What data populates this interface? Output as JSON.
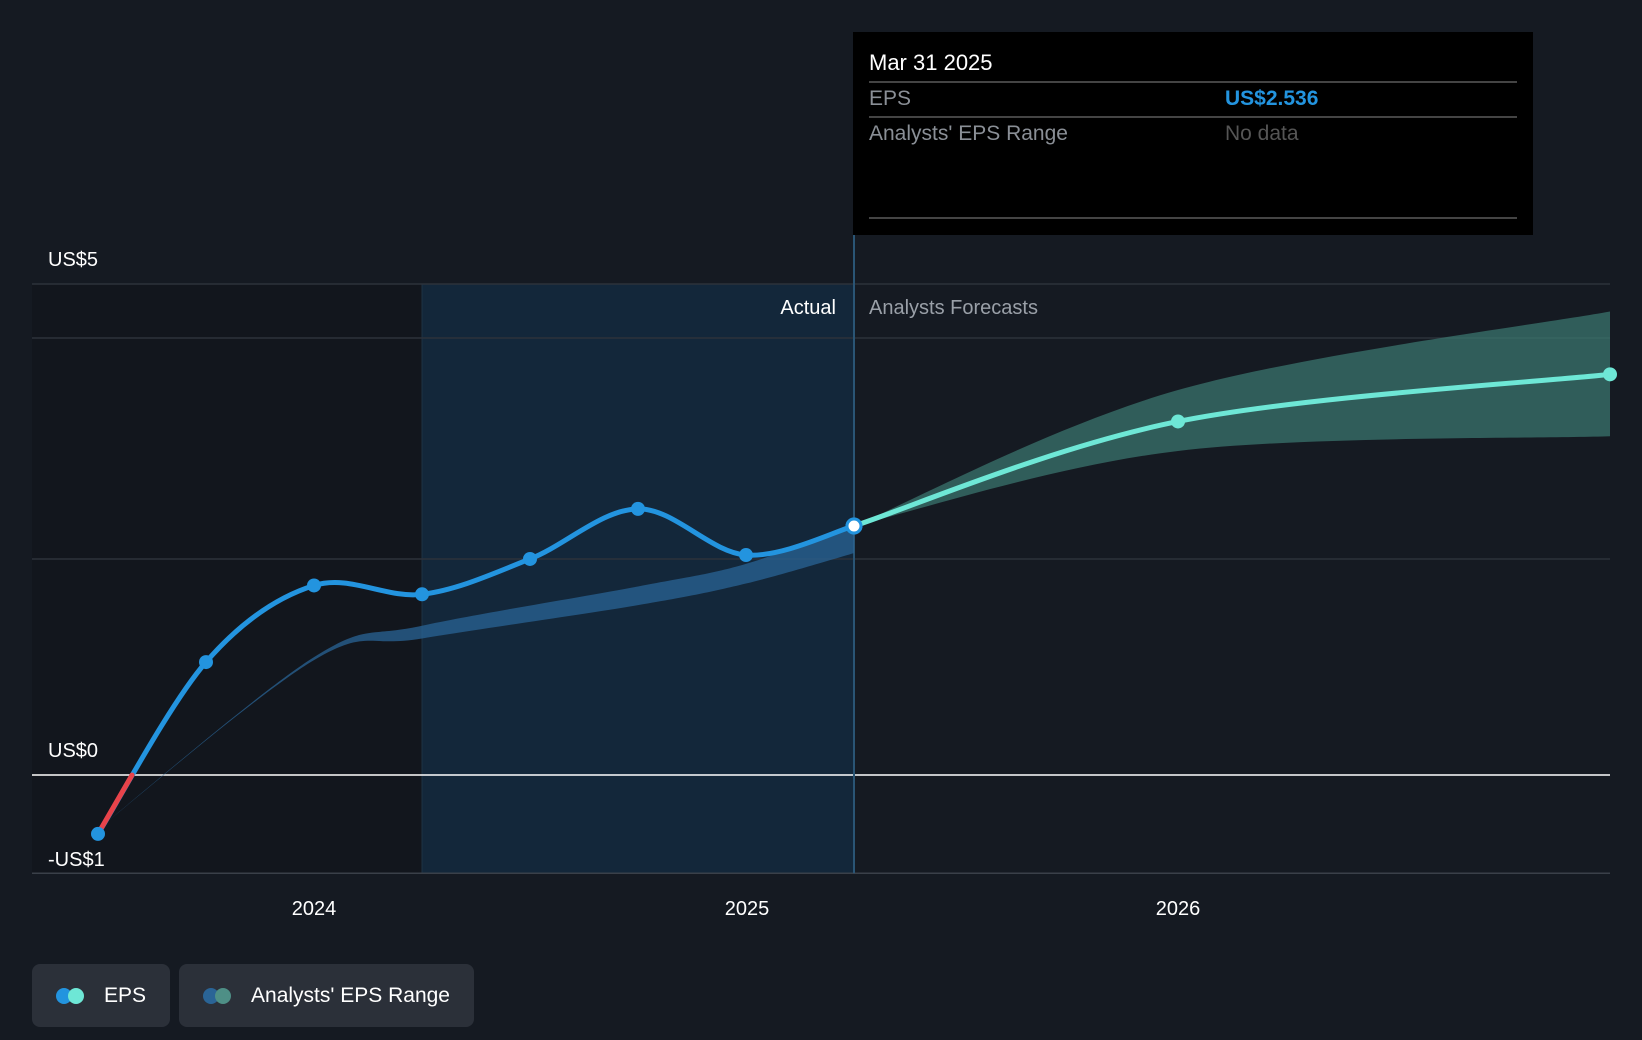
{
  "chart_data": {
    "type": "line",
    "title": "",
    "xlabel": "",
    "ylabel": "",
    "ylim": [
      -1,
      5
    ],
    "y_ticks": [
      "US$5",
      "US$0",
      "-US$1"
    ],
    "x_ticks": [
      {
        "label": "2024",
        "x": 2024
      },
      {
        "label": "2025",
        "x": 2025
      },
      {
        "label": "2026",
        "x": 2026
      }
    ],
    "section_labels": {
      "actual": "Actual",
      "forecast": "Analysts Forecasts"
    },
    "divider_x": 2025.25,
    "shade_start_x": 2024.25,
    "series": [
      {
        "name": "EPS",
        "kind": "actual",
        "color": "#2394df",
        "negative_color": "#e8434a",
        "x": [
          2023.5,
          2023.75,
          2024.0,
          2024.25,
          2024.5,
          2024.75,
          2025.0,
          2025.25
        ],
        "y": [
          -0.6,
          1.15,
          1.93,
          1.84,
          2.2,
          2.71,
          2.24,
          2.536
        ]
      },
      {
        "name": "EPS",
        "kind": "forecast",
        "color": "#6ee7d6",
        "x": [
          2025.25,
          2026.0,
          2027.0
        ],
        "y": [
          2.536,
          3.6,
          4.08
        ]
      },
      {
        "name": "Analysts' EPS Range",
        "kind": "past_range",
        "color": "#2a6496",
        "x": [
          2023.5,
          2024.0,
          2024.25,
          2024.75,
          2025.0,
          2025.25
        ],
        "upper": [
          -0.55,
          1.2,
          1.52,
          1.92,
          2.15,
          2.56
        ],
        "lower": [
          -0.55,
          1.17,
          1.39,
          1.73,
          1.95,
          2.26
        ]
      },
      {
        "name": "Analysts' EPS Range",
        "kind": "forecast_range",
        "color": "#3c7a72",
        "x": [
          2025.25,
          2026.0,
          2027.0
        ],
        "upper": [
          2.536,
          3.92,
          4.72
        ],
        "lower": [
          2.536,
          3.3,
          3.45
        ]
      }
    ]
  },
  "tooltip": {
    "date": "Mar 31 2025",
    "rows": [
      {
        "label": "EPS",
        "value": "US$2.536",
        "value_color": "#2394df"
      },
      {
        "label": "Analysts' EPS Range",
        "value": "No data",
        "value_color": "#555555"
      }
    ]
  },
  "legend": [
    {
      "label": "EPS",
      "colors": [
        "#2394df",
        "#6ee7d6"
      ]
    },
    {
      "label": "Analysts' EPS Range",
      "colors": [
        "#2a6496",
        "#4e8f86"
      ]
    }
  ]
}
